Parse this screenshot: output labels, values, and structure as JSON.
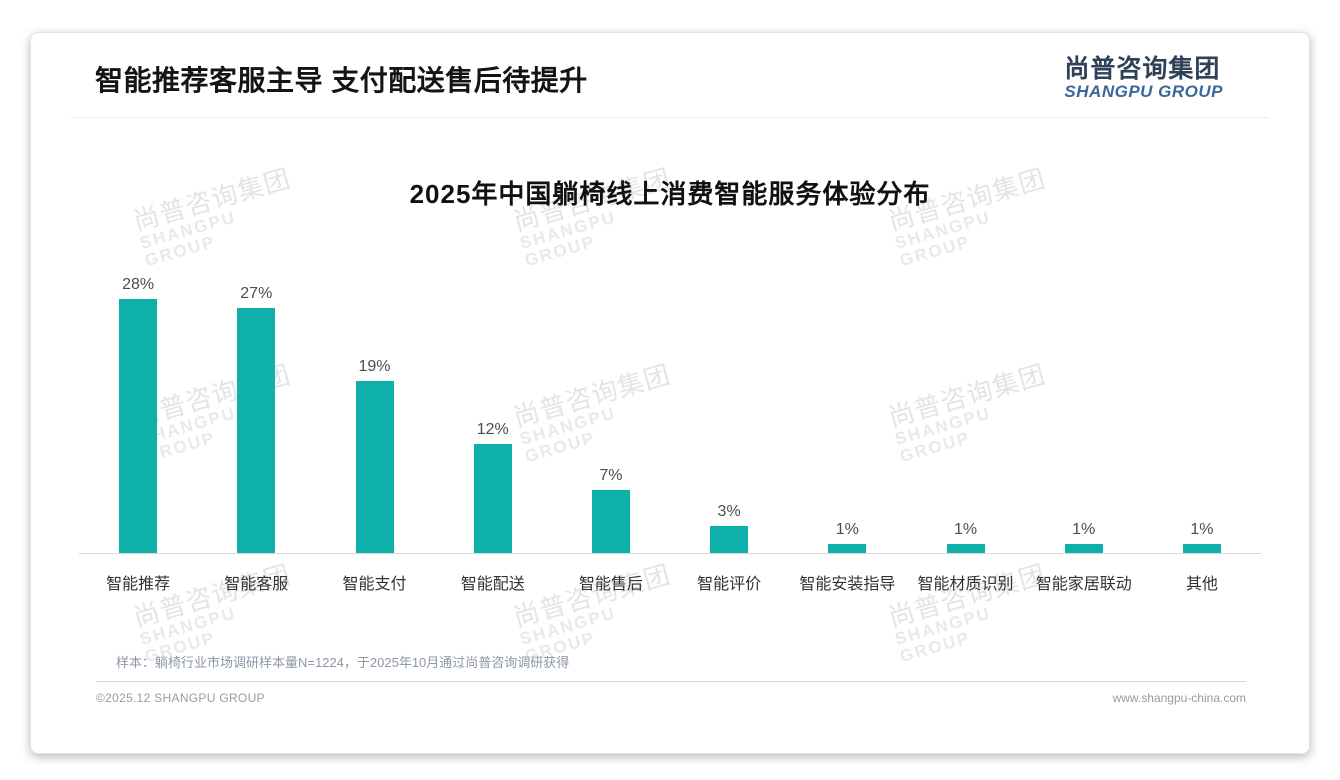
{
  "page": {
    "header": {
      "title": "智能推荐客服主导 支付配送售后待提升"
    },
    "logo": {
      "cn": "尚普咨询集团",
      "en": "SHANGPU GROUP"
    },
    "watermark": {
      "cn": "尚普咨询集团",
      "en": "SHANGPU GROUP"
    },
    "footnote": "样本：躺椅行业市场调研样本量N=1224，于2025年10月通过尚普咨询调研获得",
    "footer": {
      "left": "©2025.12 SHANGPU GROUP",
      "right": "www.shangpu-china.com"
    }
  },
  "chart_data": {
    "type": "bar",
    "title": "2025年中国躺椅线上消费智能服务体验分布",
    "categories": [
      "智能推荐",
      "智能客服",
      "智能支付",
      "智能配送",
      "智能售后",
      "智能评价",
      "智能安装指导",
      "智能材质识别",
      "智能家居联动",
      "其他"
    ],
    "values": [
      28,
      27,
      19,
      12,
      7,
      3,
      1,
      1,
      1,
      1
    ],
    "unit": "%",
    "bar_color": "#0db1a9",
    "ylim": [
      0,
      28
    ],
    "xlabel": "",
    "ylabel": "",
    "grid": false,
    "legend": false,
    "data_labels": true
  }
}
